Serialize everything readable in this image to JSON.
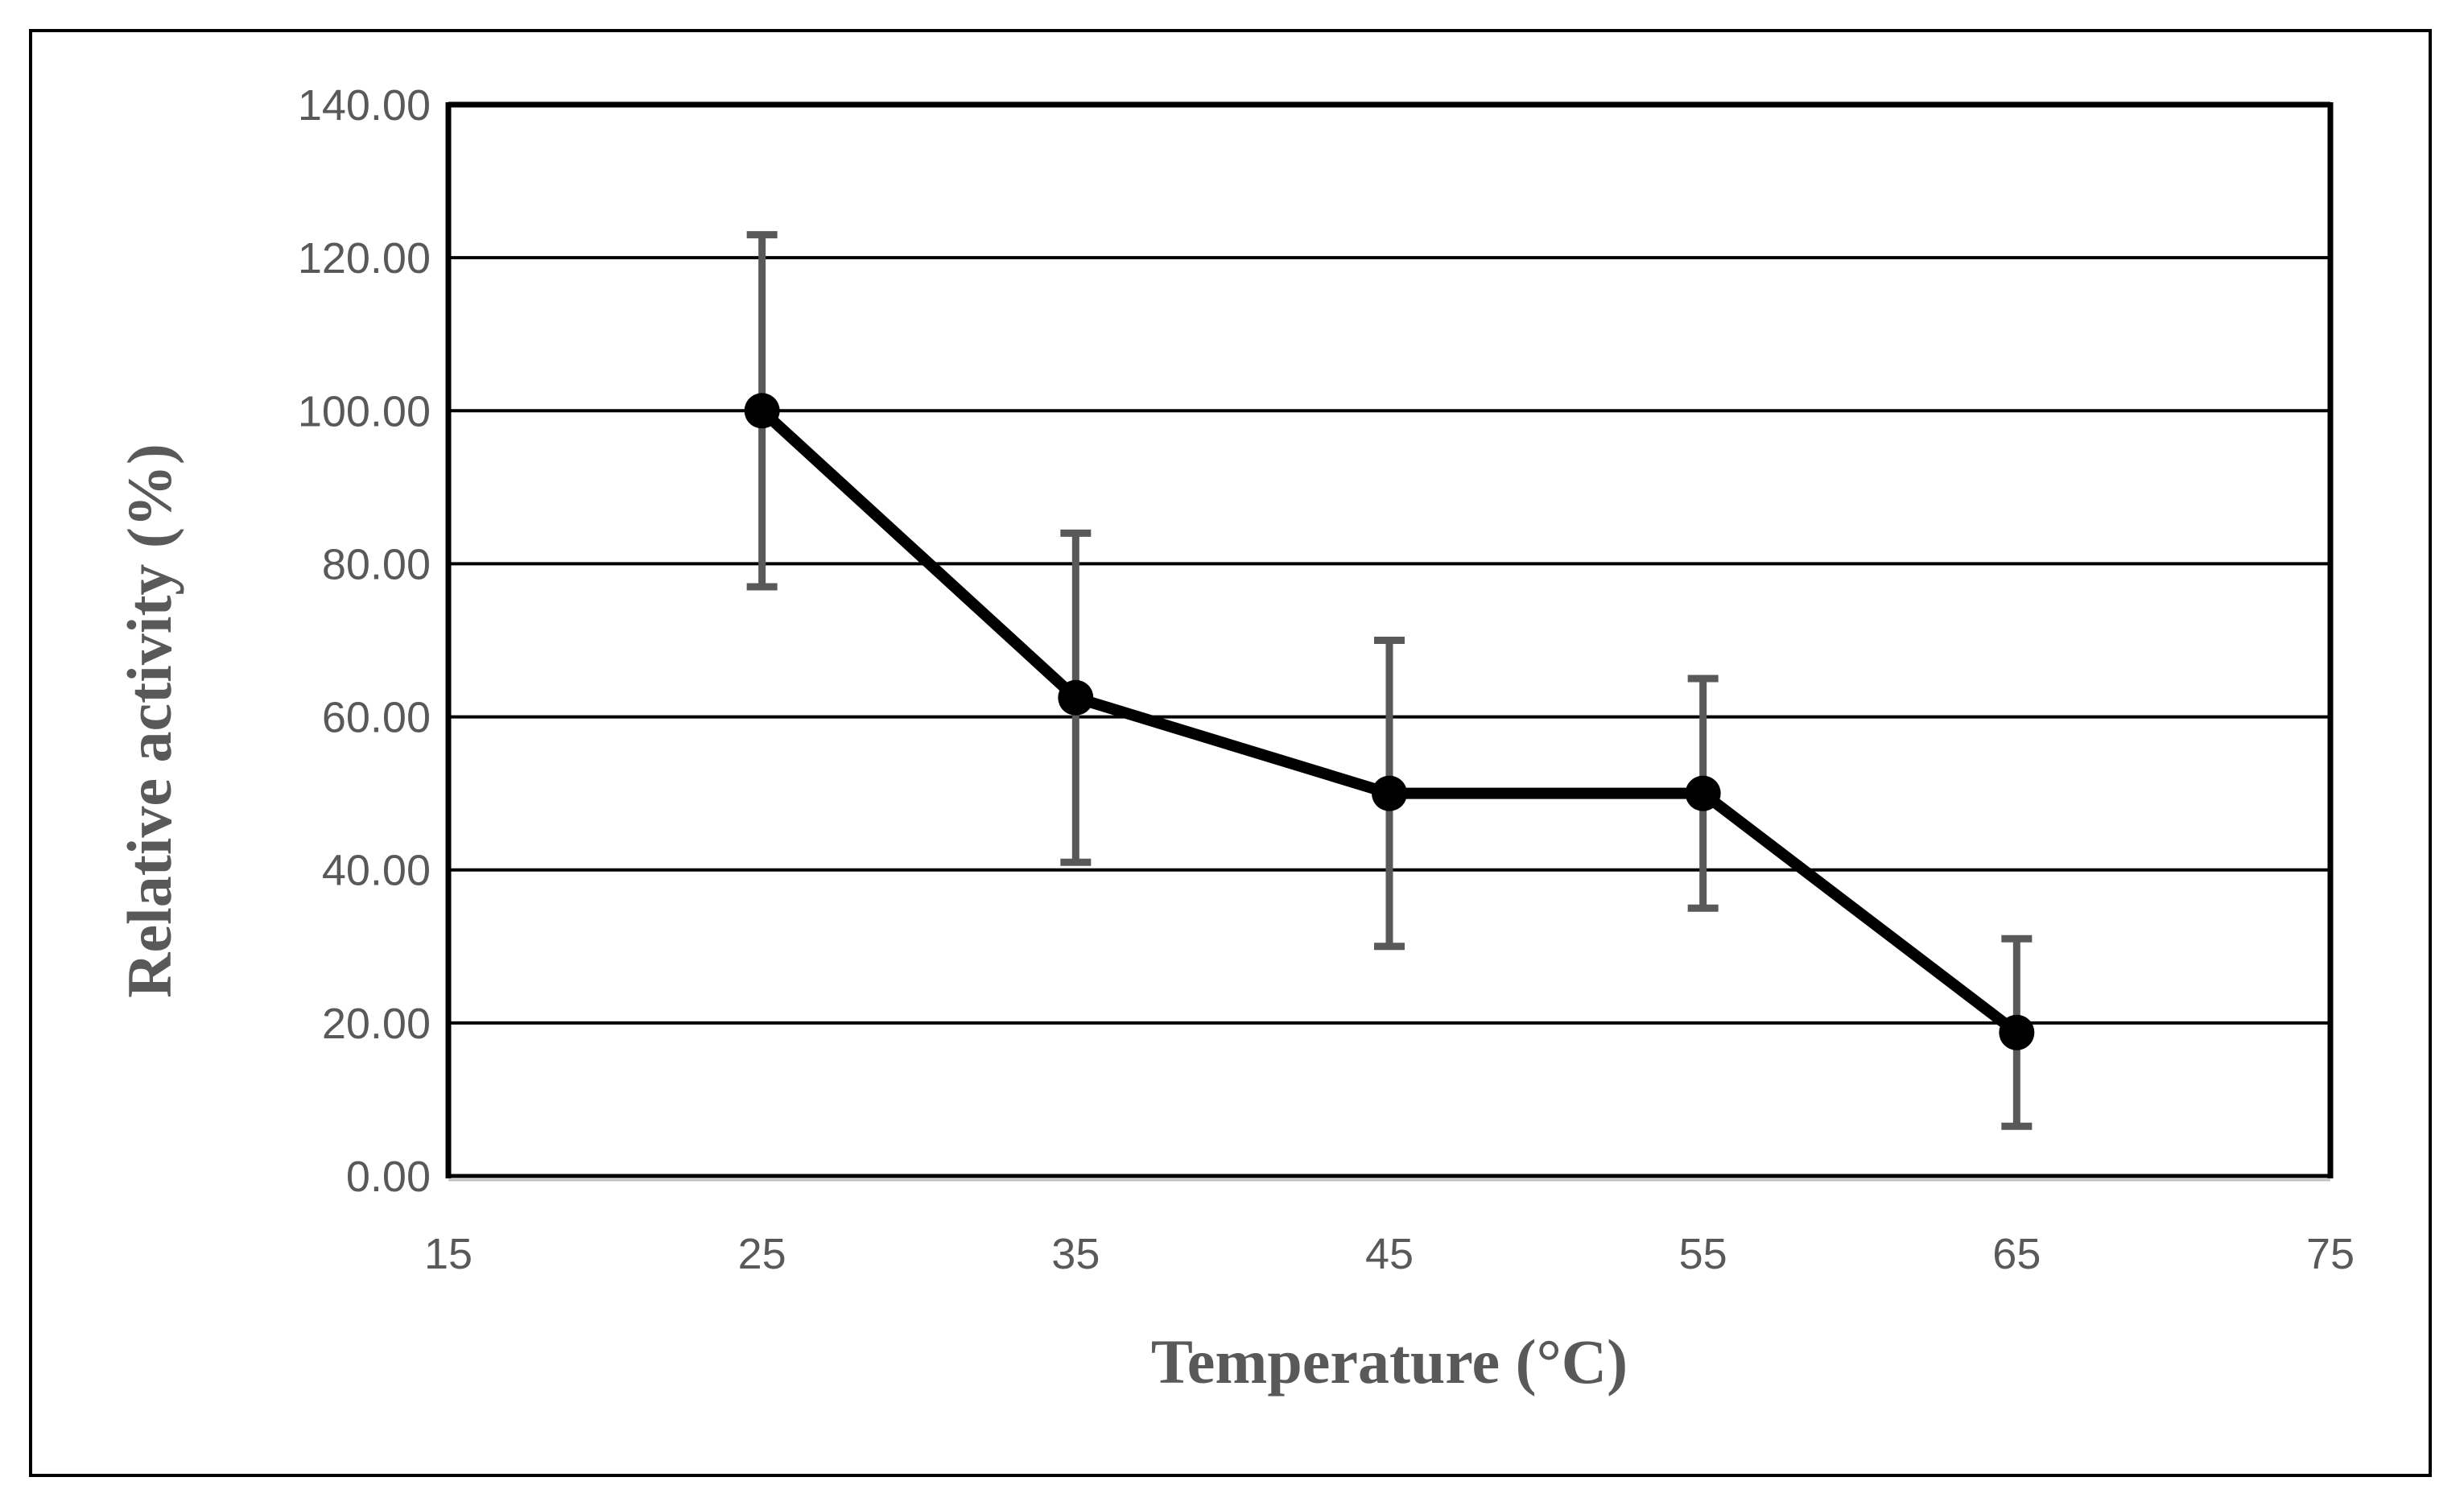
{
  "chart_data": {
    "type": "line",
    "title": "",
    "xlabel": "Temperature (°C)",
    "ylabel": "Relative activity (%)",
    "xlim": [
      15,
      75
    ],
    "ylim": [
      0,
      140
    ],
    "x_ticks": [
      15,
      25,
      35,
      45,
      55,
      65,
      75
    ],
    "y_ticks": [
      "0.00",
      "20.00",
      "40.00",
      "60.00",
      "80.00",
      "100.00",
      "120.00",
      "140.00"
    ],
    "grid": true,
    "legend": "none",
    "series": [
      {
        "name": "Relative activity",
        "color": "#000000",
        "error_color": "#595959",
        "x": [
          25,
          35,
          45,
          55,
          65
        ],
        "values": [
          100.0,
          62.5,
          50.0,
          50.0,
          18.75
        ],
        "error_upper": [
          123,
          84,
          70,
          65,
          31
        ],
        "error_lower": [
          77,
          41,
          30,
          35,
          6.5
        ]
      }
    ]
  }
}
